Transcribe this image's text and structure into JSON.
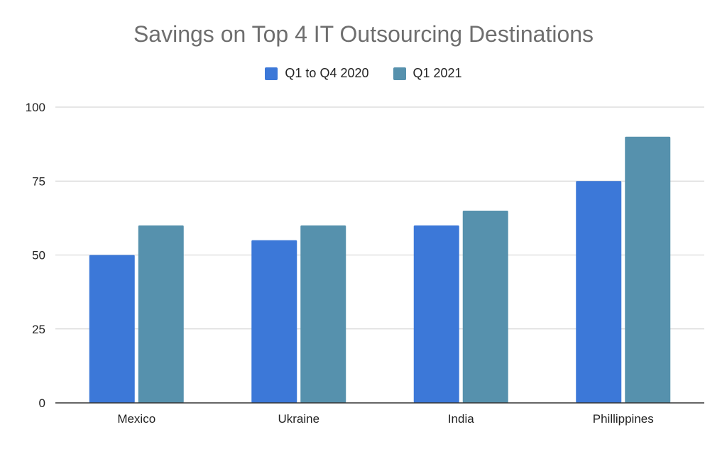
{
  "chart_data": {
    "type": "bar",
    "title": "Savings on Top 4 IT Outsourcing Destinations",
    "categories": [
      "Mexico",
      "Ukraine",
      "India",
      "Phillippines"
    ],
    "series": [
      {
        "name": "Q1 to Q4 2020",
        "color": "#3c78d8",
        "values": [
          50,
          55,
          60,
          75
        ]
      },
      {
        "name": "Q1 2021",
        "color": "#5691ad",
        "values": [
          60,
          60,
          65,
          90
        ]
      }
    ],
    "yticks": [
      "0",
      "25",
      "50",
      "75",
      "100"
    ],
    "ylim": [
      0,
      100
    ],
    "grid": true,
    "legend_position": "top"
  }
}
